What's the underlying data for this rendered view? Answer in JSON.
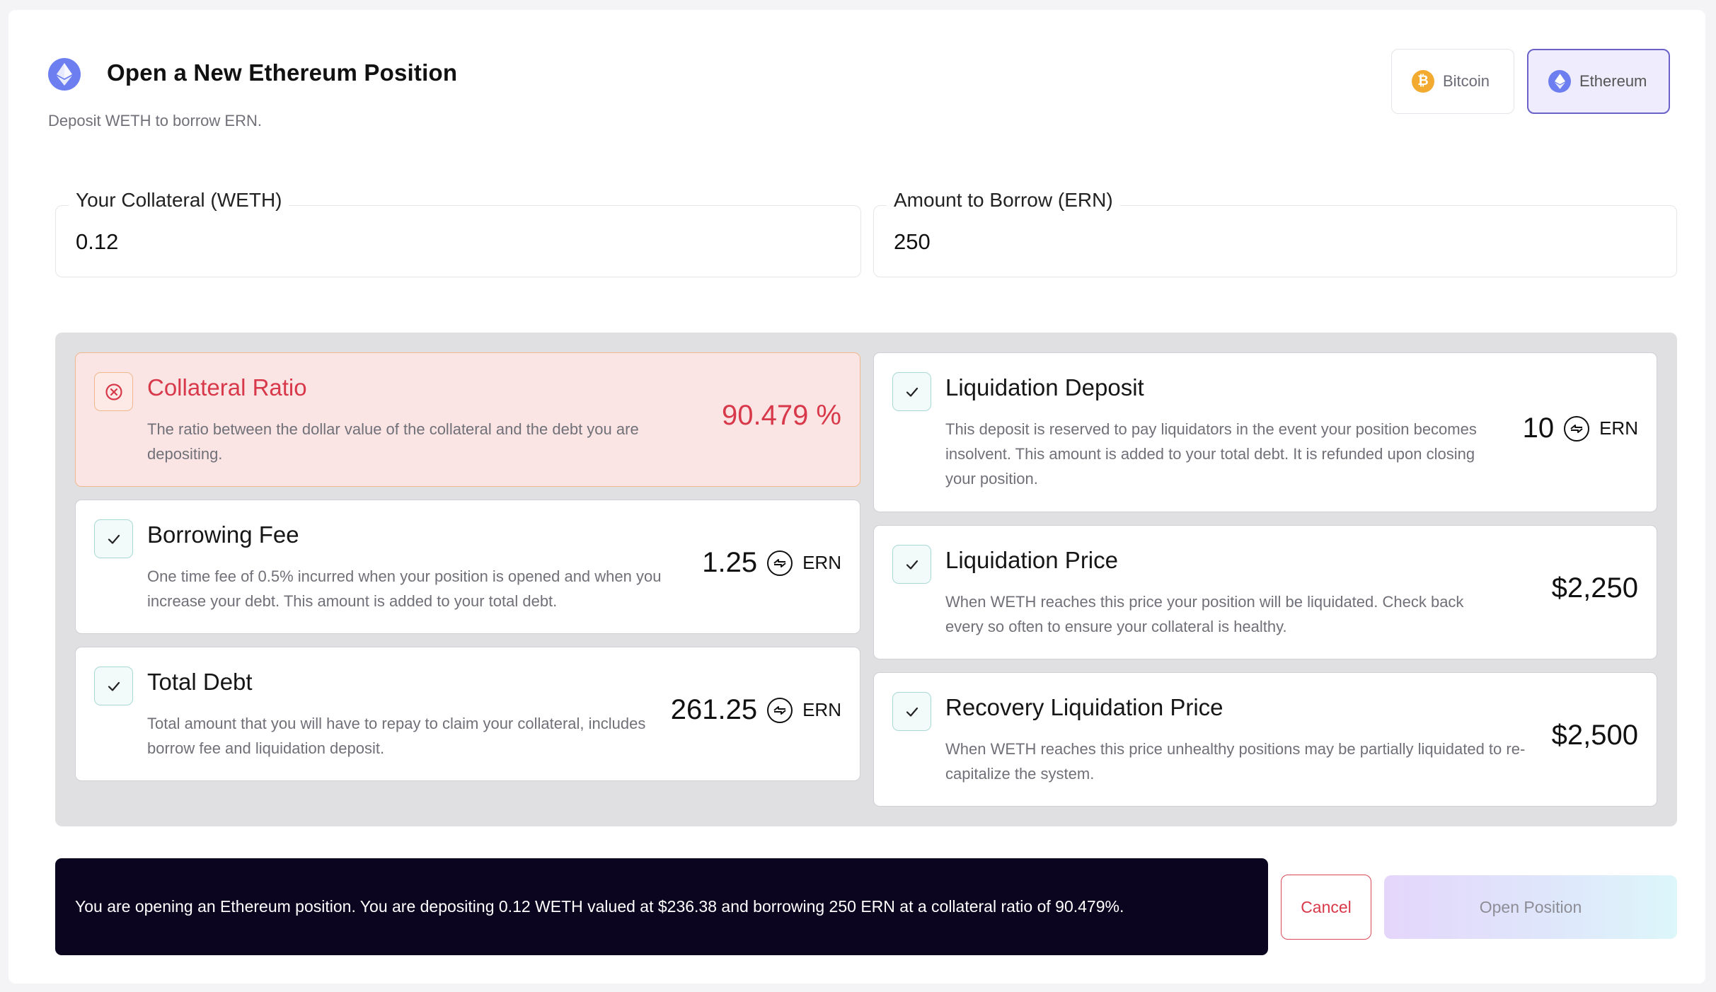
{
  "header": {
    "title": "Open a New Ethereum Position",
    "subtitle": "Deposit WETH to borrow ERN."
  },
  "asset_switch": {
    "options": [
      {
        "label": "Bitcoin",
        "icon": "bitcoin-icon",
        "color": "#f2ab30",
        "selected": false
      },
      {
        "label": "Ethereum",
        "icon": "ethereum-icon",
        "color": "#6d7ff0",
        "selected": true
      }
    ]
  },
  "form": {
    "collateral": {
      "label": "Your Collateral (WETH)",
      "value": "0.12"
    },
    "borrow": {
      "label": "Amount to Borrow (ERN)",
      "value": "250"
    }
  },
  "cards": {
    "collateral_ratio": {
      "title": "Collateral Ratio",
      "description": "The ratio between the dollar value of the collateral and the debt you are depositing.",
      "value": "90.479 %",
      "status": "error",
      "status_icon": "error-circle-icon"
    },
    "borrowing_fee": {
      "title": "Borrowing Fee",
      "description": "One time fee of 0.5% incurred when your position is opened and when you increase your debt. This amount is added to your total debt.",
      "value": "1.25",
      "unit": "ERN",
      "status": "ok",
      "status_icon": "check-icon"
    },
    "total_debt": {
      "title": "Total Debt",
      "description": "Total amount that you will have to repay to claim your collateral, includes borrow fee and liquidation deposit.",
      "value": "261.25",
      "unit": "ERN",
      "status": "ok",
      "status_icon": "check-icon"
    },
    "liquidation_deposit": {
      "title": "Liquidation Deposit",
      "description": "This deposit is reserved to pay liquidators in the event your position becomes insolvent. This amount is added to your total debt. It is refunded upon closing your position.",
      "value": "10",
      "unit": "ERN",
      "status": "ok",
      "status_icon": "check-icon"
    },
    "liquidation_price": {
      "title": "Liquidation Price",
      "description": "When WETH reaches this price your position will be liquidated. Check back every so often to ensure your collateral is healthy.",
      "value": "$2,250",
      "status": "ok",
      "status_icon": "check-icon"
    },
    "recovery_liquidation_price": {
      "title": "Recovery Liquidation Price",
      "description": "When WETH reaches this price unhealthy positions may be partially liquidated to re-capitalize the system.",
      "value": "$2,500",
      "status": "ok",
      "status_icon": "check-icon"
    }
  },
  "summary": {
    "text": "You are opening an Ethereum position. You are depositing 0.12 WETH valued at $236.38 and borrowing 250 ERN at a collateral ratio of 90.479%."
  },
  "actions": {
    "cancel_label": "Cancel",
    "open_label": "Open Position"
  },
  "colors": {
    "error": "#d8394a",
    "success_border": "#a9d9d5",
    "ethereum": "#6d7ff0",
    "bitcoin": "#f2ab30",
    "summary_bg": "#0c0520"
  }
}
